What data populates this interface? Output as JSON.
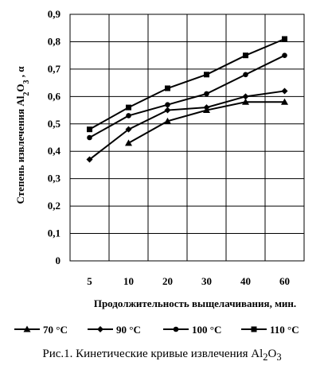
{
  "caption": {
    "text": "Рис.1. Кинетические кривые извлечения Al",
    "sub1": "2",
    "mid": "O",
    "sub2": "3"
  },
  "chart_data": {
    "type": "line",
    "categories": [
      "5",
      "10",
      "20",
      "30",
      "40",
      "60"
    ],
    "ylim": [
      0,
      0.9
    ],
    "yticks": [
      "0",
      "0,1",
      "0,2",
      "0,3",
      "0,4",
      "0,5",
      "0,6",
      "0,7",
      "0,8",
      "0,9"
    ],
    "xlabel": "Продолжительность выщелачивания, мин.",
    "ylabel_parts": {
      "a": "Степень извлечения Al",
      "b": "2",
      "c": "O",
      "d": "3",
      "e": " , α"
    },
    "grid": true,
    "legend_position": "bottom",
    "series": [
      {
        "name": "70 °C",
        "marker": "triangle",
        "values": [
          null,
          0.43,
          0.51,
          0.55,
          0.58,
          0.58
        ]
      },
      {
        "name": "90 °C",
        "marker": "diamond",
        "values": [
          0.37,
          0.48,
          0.55,
          0.56,
          0.6,
          0.62
        ]
      },
      {
        "name": "100 °C",
        "marker": "circle",
        "values": [
          0.45,
          0.53,
          0.57,
          0.61,
          0.68,
          0.75
        ]
      },
      {
        "name": "110 °C",
        "marker": "square",
        "values": [
          0.48,
          0.56,
          0.63,
          0.68,
          0.75,
          0.81
        ]
      }
    ]
  }
}
